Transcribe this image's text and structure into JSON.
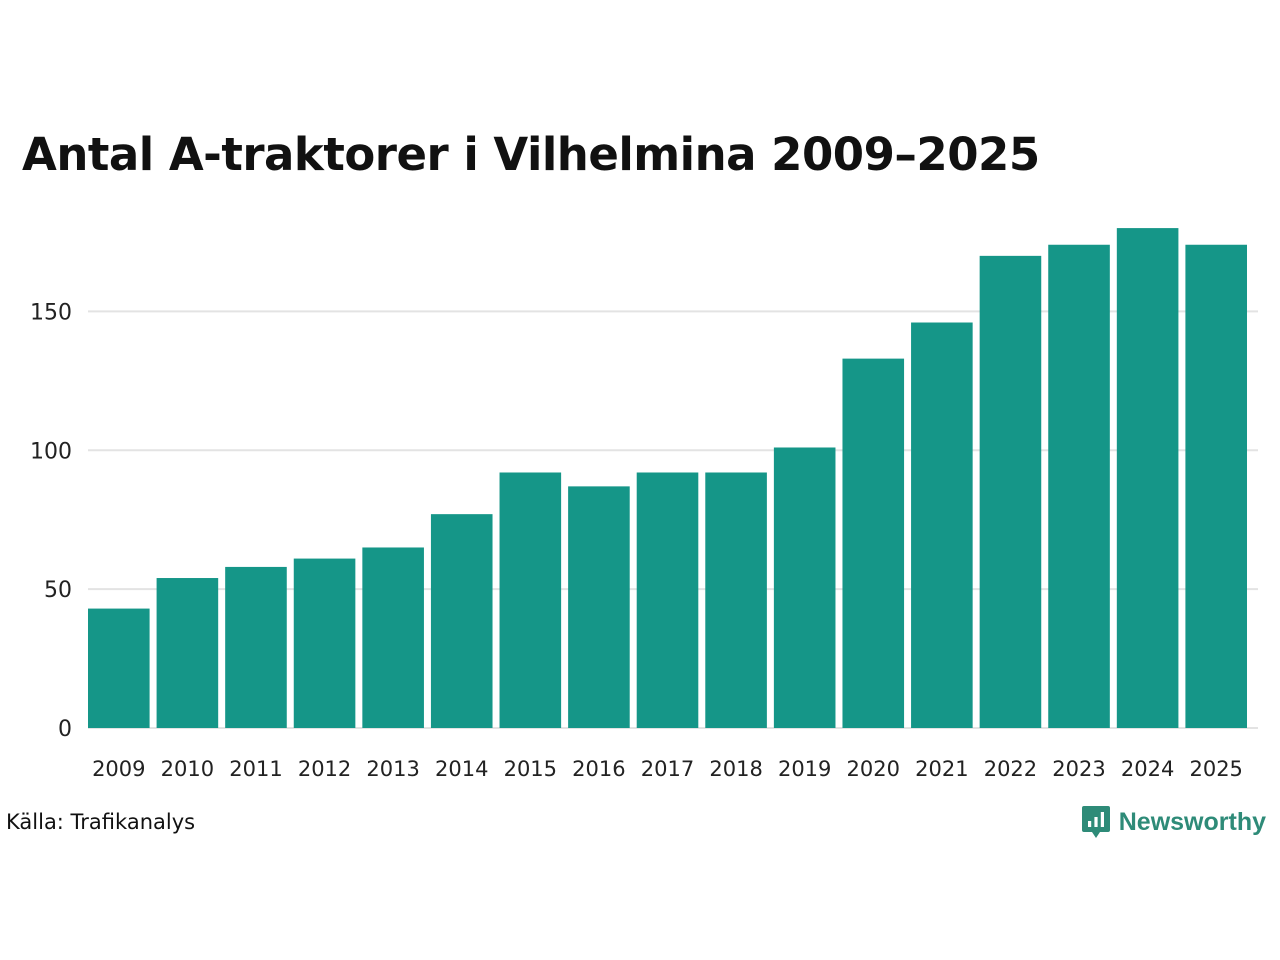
{
  "chart_data": {
    "type": "bar",
    "title": "Antal A-traktorer i Vilhelmina 2009–2025",
    "categories": [
      "2009",
      "2010",
      "2011",
      "2012",
      "2013",
      "2014",
      "2015",
      "2016",
      "2017",
      "2018",
      "2019",
      "2020",
      "2021",
      "2022",
      "2023",
      "2024",
      "2025"
    ],
    "values": [
      43,
      54,
      58,
      61,
      65,
      77,
      92,
      87,
      92,
      92,
      101,
      133,
      146,
      170,
      174,
      180,
      174
    ],
    "xlabel": "",
    "ylabel": "",
    "ylim": [
      0,
      180
    ],
    "yticks": [
      0,
      50,
      100,
      150
    ],
    "grid": true,
    "bar_color": "#159688",
    "grid_color": "#e3e3e3"
  },
  "source": "Källa: Trafikanalys",
  "brand": {
    "name": "Newsworthy",
    "icon": "newsworthy-logo-icon",
    "color": "#2e8b78"
  }
}
